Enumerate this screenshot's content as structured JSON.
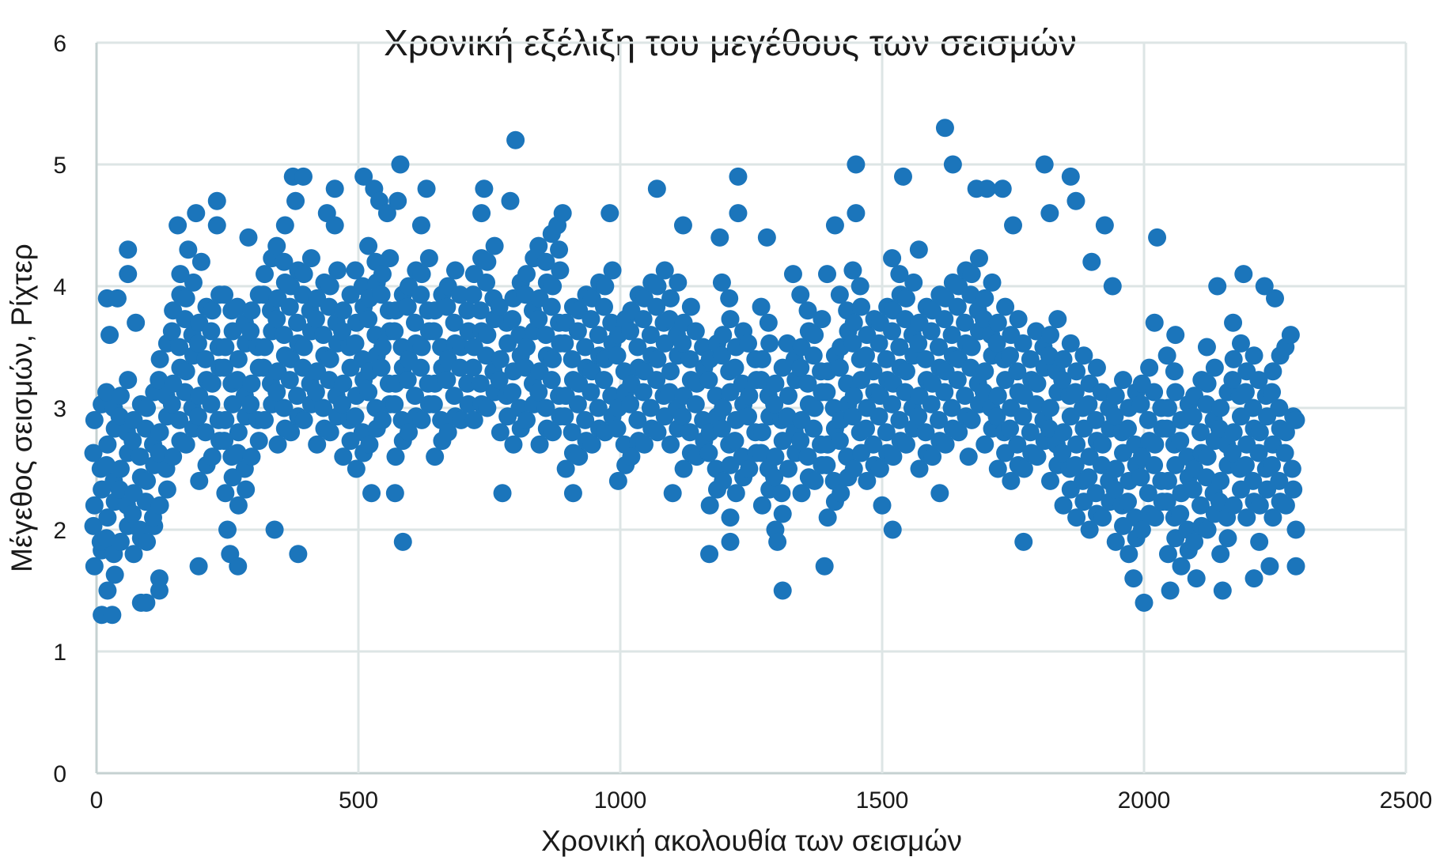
{
  "chart_data": {
    "type": "scatter",
    "title": "Χρονική εξέλιξη του μεγέθους των σεισμών",
    "xlabel": "Χρονική ακολουθία των σεισμών",
    "ylabel": "Μέγεθος σεισμών, Ρίχτερ",
    "xlim": [
      0,
      2500
    ],
    "ylim": [
      0,
      6
    ],
    "xticks": [
      "0",
      "500",
      "1000",
      "1500",
      "2000",
      "2500"
    ],
    "yticks": [
      "0",
      "1",
      "2",
      "3",
      "4",
      "5",
      "6"
    ],
    "grid": true,
    "legend": "none",
    "marker_color": "#1b75bb",
    "points_by_x": [
      [
        0,
        1.7,
        1.9,
        2.2,
        2.5,
        2.9
      ],
      [
        25,
        1.5,
        1.8,
        2.1,
        2.4,
        2.7,
        3.0
      ],
      [
        50,
        1.9,
        2.2,
        2.5,
        2.8,
        3.1
      ],
      [
        75,
        1.8,
        2.0,
        2.3,
        2.6,
        2.9
      ],
      [
        100,
        1.9,
        2.1,
        2.4,
        2.7,
        3.0
      ],
      [
        125,
        2.2,
        2.5,
        2.8,
        3.1,
        3.4
      ],
      [
        150,
        2.6,
        2.9,
        3.2,
        3.5,
        3.8
      ],
      [
        175,
        2.7,
        3.0,
        3.3,
        3.6,
        3.9
      ],
      [
        200,
        2.4,
        2.8,
        3.1,
        3.4,
        3.7
      ],
      [
        225,
        2.6,
        2.9,
        3.2,
        3.5,
        3.8
      ],
      [
        250,
        2.3,
        2.6,
        2.9,
        3.2,
        3.5,
        3.8
      ],
      [
        275,
        2.2,
        2.5,
        2.8,
        3.1,
        3.4,
        3.7
      ],
      [
        300,
        2.6,
        2.9,
        3.2,
        3.5,
        3.8
      ],
      [
        325,
        2.9,
        3.2,
        3.5,
        3.8,
        4.1
      ],
      [
        350,
        2.7,
        3.0,
        3.3,
        3.6,
        3.9,
        4.2
      ],
      [
        375,
        2.8,
        3.1,
        3.4,
        3.7,
        4.0
      ],
      [
        400,
        2.9,
        3.2,
        3.5,
        3.8,
        4.1
      ],
      [
        425,
        2.7,
        3.0,
        3.3,
        3.6,
        3.9
      ],
      [
        450,
        2.8,
        3.1,
        3.4,
        3.7,
        4.0
      ],
      [
        475,
        2.6,
        2.9,
        3.2,
        3.5,
        3.8
      ],
      [
        500,
        2.5,
        2.8,
        3.1,
        3.4,
        3.7,
        4.0
      ],
      [
        525,
        2.7,
        3.0,
        3.3,
        3.6,
        3.9,
        4.2
      ],
      [
        550,
        2.9,
        3.2,
        3.5,
        3.8,
        4.1
      ],
      [
        575,
        2.6,
        2.9,
        3.2,
        3.5,
        3.8
      ],
      [
        600,
        2.8,
        3.1,
        3.4,
        3.7,
        4.0
      ],
      [
        625,
        2.9,
        3.2,
        3.5,
        3.8,
        4.1
      ],
      [
        650,
        2.6,
        2.9,
        3.2,
        3.5,
        3.8
      ],
      [
        675,
        2.8,
        3.1,
        3.4,
        3.7,
        4.0
      ],
      [
        700,
        2.9,
        3.2,
        3.5,
        3.8
      ],
      [
        725,
        2.9,
        3.2,
        3.5,
        3.8,
        4.1
      ],
      [
        750,
        3.0,
        3.3,
        3.6,
        3.9,
        4.2
      ],
      [
        775,
        2.8,
        3.1,
        3.4,
        3.7
      ],
      [
        800,
        2.7,
        3.0,
        3.3,
        3.6,
        3.9
      ],
      [
        825,
        2.9,
        3.2,
        3.5,
        3.8,
        4.1
      ],
      [
        850,
        2.7,
        3.0,
        3.3,
        3.6,
        3.9,
        4.2
      ],
      [
        875,
        2.8,
        3.1,
        3.4,
        3.7,
        4.0,
        4.3
      ],
      [
        900,
        2.5,
        2.8,
        3.1,
        3.4,
        3.7
      ],
      [
        925,
        2.6,
        2.9,
        3.2,
        3.5,
        3.8
      ],
      [
        950,
        2.7,
        3.0,
        3.3,
        3.6,
        3.9
      ],
      [
        975,
        2.8,
        3.1,
        3.4,
        3.7,
        4.0
      ],
      [
        1000,
        2.4,
        2.7,
        3.0,
        3.3,
        3.6
      ],
      [
        1025,
        2.6,
        2.9,
        3.2,
        3.5,
        3.8
      ],
      [
        1050,
        2.7,
        3.0,
        3.3,
        3.6,
        3.9
      ],
      [
        1075,
        2.8,
        3.1,
        3.4,
        3.7,
        4.0
      ],
      [
        1100,
        2.7,
        3.0,
        3.3,
        3.6,
        3.9
      ],
      [
        1125,
        2.5,
        2.8,
        3.1,
        3.4,
        3.7
      ],
      [
        1150,
        2.6,
        2.9,
        3.2,
        3.5
      ],
      [
        1175,
        2.2,
        2.5,
        2.8,
        3.1,
        3.4
      ],
      [
        1200,
        2.4,
        2.7,
        3.0,
        3.3,
        3.6,
        3.9
      ],
      [
        1225,
        2.3,
        2.6,
        2.9,
        3.2,
        3.5
      ],
      [
        1250,
        2.5,
        2.8,
        3.1,
        3.4
      ],
      [
        1275,
        2.2,
        2.5,
        2.8,
        3.1,
        3.4,
        3.7
      ],
      [
        1300,
        2.0,
        2.3,
        2.6,
        2.9,
        3.2
      ],
      [
        1325,
        2.5,
        2.8,
        3.1,
        3.4
      ],
      [
        1350,
        2.3,
        2.6,
        2.9,
        3.2,
        3.5,
        3.8
      ],
      [
        1375,
        2.4,
        2.7,
        3.0,
        3.3,
        3.6
      ],
      [
        1400,
        2.1,
        2.4,
        2.7,
        3.0,
        3.3
      ],
      [
        1425,
        2.3,
        2.6,
        2.9,
        3.2,
        3.5,
        3.8
      ],
      [
        1450,
        2.5,
        2.8,
        3.1,
        3.4,
        3.7,
        4.0
      ],
      [
        1475,
        2.4,
        2.7,
        3.0,
        3.3,
        3.6
      ],
      [
        1500,
        2.5,
        2.8,
        3.1,
        3.4,
        3.7
      ],
      [
        1525,
        2.6,
        2.9,
        3.2,
        3.5,
        3.8,
        4.1
      ],
      [
        1550,
        2.7,
        3.0,
        3.3,
        3.6,
        3.9
      ],
      [
        1575,
        2.5,
        2.8,
        3.1,
        3.4,
        3.7
      ],
      [
        1600,
        2.6,
        2.9,
        3.2,
        3.5,
        3.8
      ],
      [
        1625,
        2.7,
        3.0,
        3.3,
        3.6,
        3.9
      ],
      [
        1650,
        2.8,
        3.1,
        3.4,
        3.7,
        4.0
      ],
      [
        1675,
        2.9,
        3.2,
        3.5,
        3.8,
        4.1
      ],
      [
        1700,
        2.7,
        3.0,
        3.3,
        3.6,
        3.9
      ],
      [
        1725,
        2.5,
        2.8,
        3.1,
        3.4,
        3.7
      ],
      [
        1750,
        2.4,
        2.7,
        3.0,
        3.3,
        3.6
      ],
      [
        1775,
        2.5,
        2.8,
        3.1,
        3.4
      ],
      [
        1800,
        2.6,
        2.9,
        3.2,
        3.5
      ],
      [
        1825,
        2.4,
        2.7,
        3.0,
        3.3,
        3.6
      ],
      [
        1850,
        2.2,
        2.5,
        2.8,
        3.1,
        3.4
      ],
      [
        1875,
        2.1,
        2.4,
        2.7,
        3.0,
        3.3
      ],
      [
        1900,
        2.0,
        2.3,
        2.6,
        2.9,
        3.2
      ],
      [
        1925,
        2.1,
        2.4,
        2.7,
        3.0
      ],
      [
        1950,
        1.9,
        2.2,
        2.5,
        2.8,
        3.1
      ],
      [
        1975,
        1.8,
        2.1,
        2.4,
        2.7,
        3.0
      ],
      [
        2000,
        2.0,
        2.3,
        2.6,
        2.9,
        3.2
      ],
      [
        2025,
        2.1,
        2.4,
        2.7,
        3.0
      ],
      [
        2050,
        1.8,
        2.1,
        2.4,
        2.7,
        3.0,
        3.3
      ],
      [
        2075,
        1.7,
        2.0,
        2.3,
        2.6,
        2.9
      ],
      [
        2100,
        1.9,
        2.2,
        2.5,
        2.8,
        3.1
      ],
      [
        2125,
        2.0,
        2.3,
        2.6,
        2.9,
        3.2
      ],
      [
        2150,
        1.8,
        2.1,
        2.4,
        2.7,
        3.0
      ],
      [
        2175,
        2.2,
        2.5,
        2.8,
        3.1,
        3.4
      ],
      [
        2200,
        2.1,
        2.4,
        2.7,
        3.0,
        3.3
      ],
      [
        2225,
        2.2,
        2.5,
        2.8,
        3.1
      ],
      [
        2250,
        2.1,
        2.4,
        2.7,
        3.0,
        3.3
      ],
      [
        2275,
        2.2,
        2.5,
        2.8
      ]
    ],
    "outliers": [
      [
        10,
        1.3
      ],
      [
        30,
        1.3
      ],
      [
        20,
        3.9
      ],
      [
        40,
        3.9
      ],
      [
        25,
        3.6
      ],
      [
        60,
        4.3
      ],
      [
        60,
        4.1
      ],
      [
        75,
        3.7
      ],
      [
        85,
        1.4
      ],
      [
        95,
        1.4
      ],
      [
        120,
        1.5
      ],
      [
        120,
        1.6
      ],
      [
        155,
        4.5
      ],
      [
        160,
        4.1
      ],
      [
        190,
        4.6
      ],
      [
        175,
        4.3
      ],
      [
        200,
        4.2
      ],
      [
        195,
        1.7
      ],
      [
        230,
        4.7
      ],
      [
        230,
        4.5
      ],
      [
        250,
        2.0
      ],
      [
        255,
        1.8
      ],
      [
        270,
        1.7
      ],
      [
        290,
        4.4
      ],
      [
        340,
        2.0
      ],
      [
        375,
        4.9
      ],
      [
        385,
        1.8
      ],
      [
        395,
        4.9
      ],
      [
        380,
        4.7
      ],
      [
        360,
        4.5
      ],
      [
        440,
        4.6
      ],
      [
        455,
        4.8
      ],
      [
        455,
        4.5
      ],
      [
        510,
        4.9
      ],
      [
        530,
        4.8
      ],
      [
        540,
        4.7
      ],
      [
        555,
        4.6
      ],
      [
        580,
        5.0
      ],
      [
        575,
        4.7
      ],
      [
        585,
        1.9
      ],
      [
        570,
        2.3
      ],
      [
        525,
        2.3
      ],
      [
        630,
        4.8
      ],
      [
        620,
        4.5
      ],
      [
        740,
        4.8
      ],
      [
        735,
        4.6
      ],
      [
        775,
        2.3
      ],
      [
        800,
        5.2
      ],
      [
        790,
        4.7
      ],
      [
        880,
        4.5
      ],
      [
        890,
        4.6
      ],
      [
        910,
        2.3
      ],
      [
        980,
        4.6
      ],
      [
        1070,
        4.8
      ],
      [
        1100,
        2.3
      ],
      [
        1120,
        4.5
      ],
      [
        1170,
        1.8
      ],
      [
        1190,
        4.4
      ],
      [
        1210,
        2.1
      ],
      [
        1210,
        1.9
      ],
      [
        1225,
        4.9
      ],
      [
        1225,
        4.6
      ],
      [
        1280,
        4.4
      ],
      [
        1300,
        1.9
      ],
      [
        1310,
        1.5
      ],
      [
        1330,
        4.1
      ],
      [
        1390,
        1.7
      ],
      [
        1395,
        4.1
      ],
      [
        1410,
        4.5
      ],
      [
        1450,
        5.0
      ],
      [
        1450,
        4.6
      ],
      [
        1500,
        2.2
      ],
      [
        1520,
        2.0
      ],
      [
        1540,
        4.9
      ],
      [
        1570,
        4.3
      ],
      [
        1620,
        5.3
      ],
      [
        1635,
        5.0
      ],
      [
        1610,
        2.3
      ],
      [
        1665,
        2.6
      ],
      [
        1680,
        4.8
      ],
      [
        1700,
        4.8
      ],
      [
        1730,
        4.8
      ],
      [
        1750,
        4.5
      ],
      [
        1770,
        1.9
      ],
      [
        1810,
        5.0
      ],
      [
        1820,
        4.6
      ],
      [
        1860,
        4.9
      ],
      [
        1870,
        4.7
      ],
      [
        1900,
        4.2
      ],
      [
        1925,
        4.5
      ],
      [
        1940,
        4.0
      ],
      [
        1980,
        1.6
      ],
      [
        2000,
        1.4
      ],
      [
        2025,
        4.4
      ],
      [
        2020,
        3.7
      ],
      [
        2050,
        1.5
      ],
      [
        2060,
        3.6
      ],
      [
        2100,
        1.6
      ],
      [
        2120,
        3.5
      ],
      [
        2140,
        4.0
      ],
      [
        2150,
        1.5
      ],
      [
        2170,
        3.7
      ],
      [
        2190,
        4.1
      ],
      [
        2230,
        4.0
      ],
      [
        2250,
        3.9
      ],
      [
        2270,
        3.5
      ],
      [
        2280,
        3.6
      ],
      [
        2290,
        2.9
      ],
      [
        2290,
        2.0
      ],
      [
        2290,
        1.7
      ],
      [
        2240,
        1.7
      ],
      [
        2210,
        1.6
      ],
      [
        2220,
        1.9
      ]
    ]
  }
}
